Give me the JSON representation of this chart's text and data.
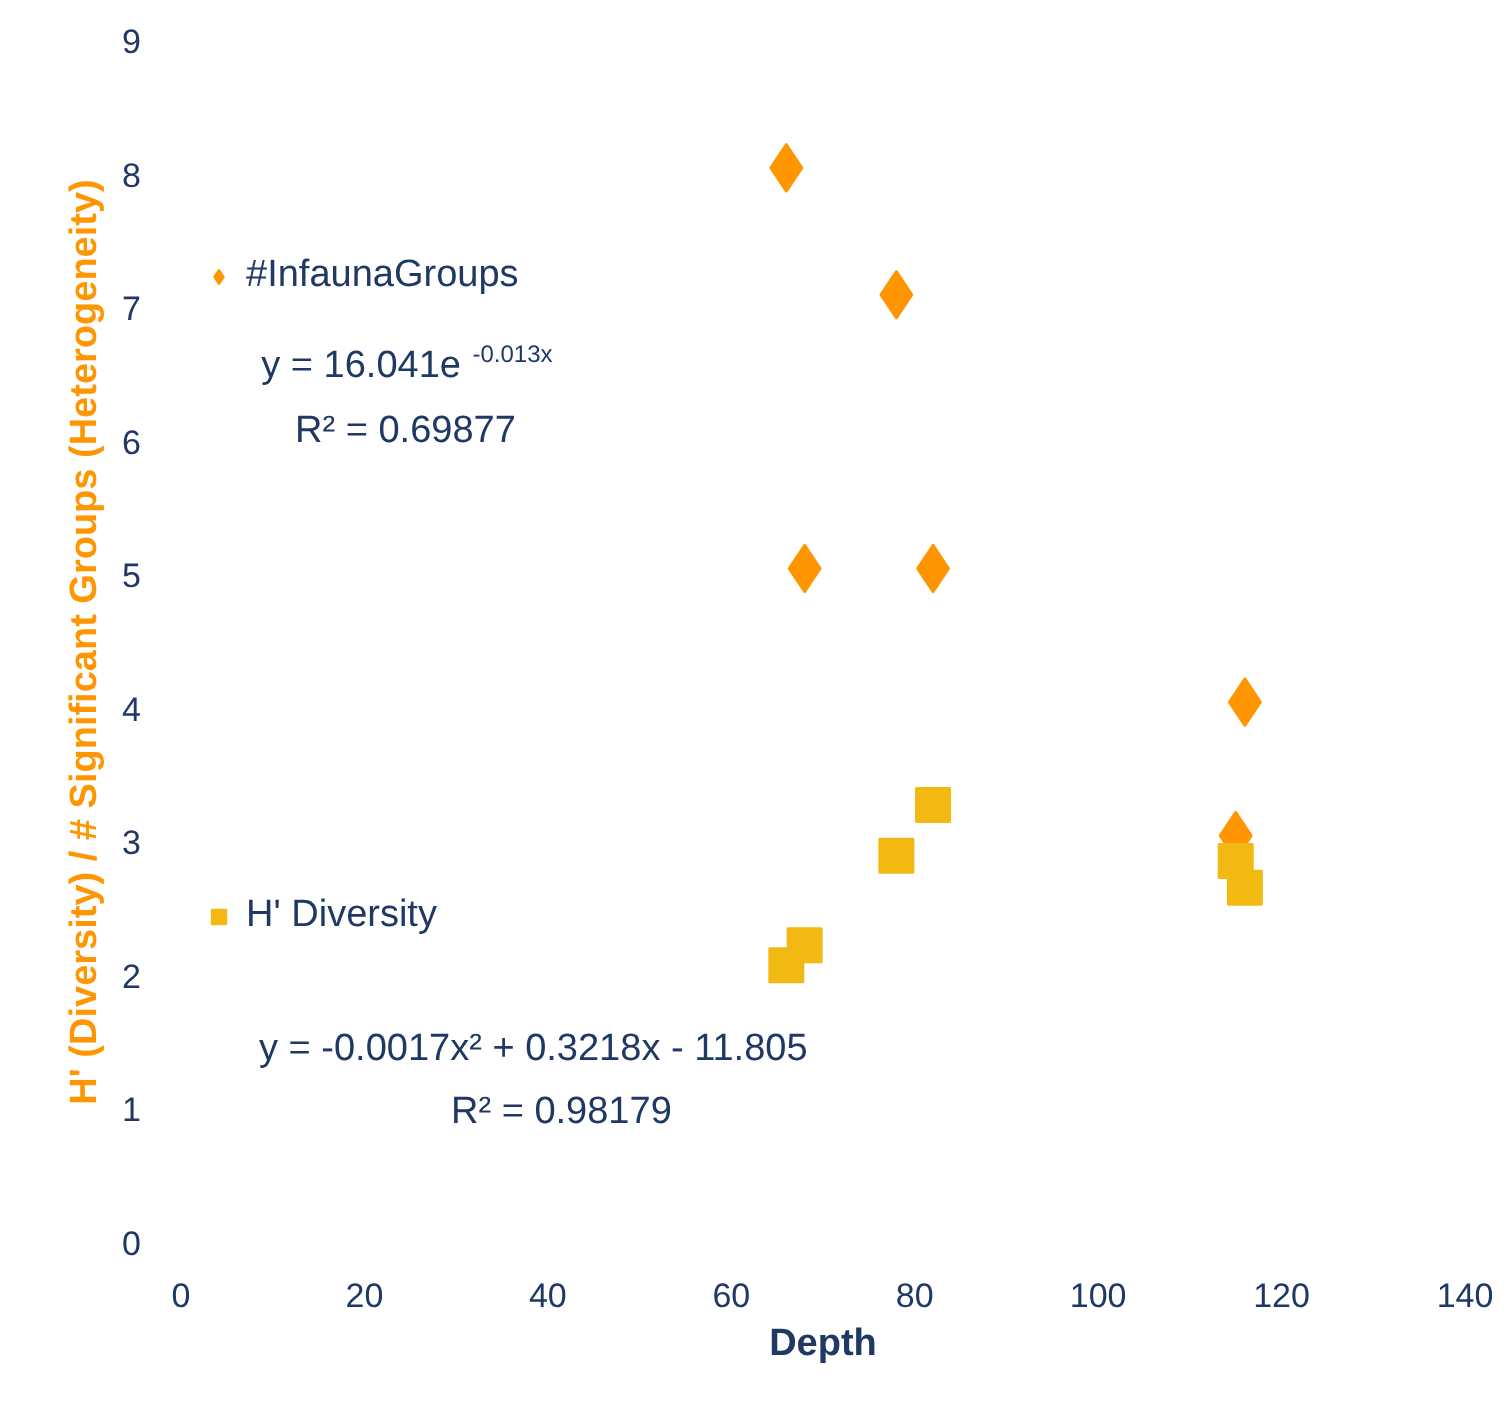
{
  "chart_data": {
    "type": "scatter",
    "xlabel": "Depth",
    "ylabel": "H' (Diversity) / # Significant Groups (Heterogeneity)",
    "xlim": [
      0,
      140
    ],
    "ylim": [
      0,
      9
    ],
    "xticks": [
      0,
      20,
      40,
      60,
      80,
      100,
      120,
      140
    ],
    "yticks": [
      0,
      1,
      2,
      3,
      4,
      5,
      6,
      7,
      8,
      9
    ],
    "grid": false,
    "legend": "left",
    "series": [
      {
        "name": "#InfaunaGroups",
        "color": "#ff9500",
        "marker": "diamond",
        "x": [
          66,
          78,
          68,
          82,
          116,
          115
        ],
        "values": [
          8.05,
          7.1,
          5.05,
          5.05,
          4.05,
          3.05
        ]
      },
      {
        "name": "H' Diversity",
        "color": "#f3b913",
        "marker": "square",
        "x": [
          66,
          68,
          78,
          82,
          115,
          116
        ],
        "values": [
          2.08,
          2.23,
          2.9,
          3.28,
          2.86,
          2.66
        ]
      }
    ],
    "annotations": [
      "y = 16.041e$^{-0.013x}$",
      "R² = 0.69877",
      "y = -0.0017x² + 0.3218x - 11.805",
      "R² = 0.98179"
    ]
  }
}
